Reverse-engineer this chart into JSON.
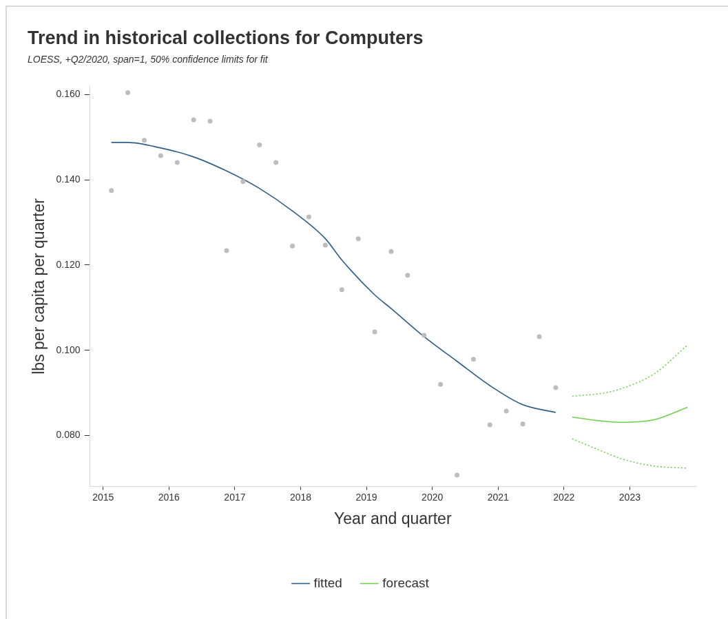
{
  "chart_data": {
    "type": "scatter",
    "title": "Trend in historical collections for Computers",
    "subtitle": "LOESS, +Q2/2020, span=1, 50% confidence limits for fit",
    "xlabel": "Year and quarter",
    "ylabel": "lbs per capita per quarter",
    "xlim": [
      2014.8,
      2024.0
    ],
    "ylim": [
      0.068,
      0.162
    ],
    "xticks": [
      2015,
      2016,
      2017,
      2018,
      2019,
      2020,
      2021,
      2022,
      2023
    ],
    "yticks": [
      {
        "value": 0.08,
        "label": "0.080"
      },
      {
        "value": 0.1,
        "label": "0.100"
      },
      {
        "value": 0.12,
        "label": "0.120"
      },
      {
        "value": 0.14,
        "label": "0.140"
      },
      {
        "value": 0.16,
        "label": "0.160"
      }
    ],
    "grid": false,
    "legend": "bottom",
    "series": [
      {
        "type": "scatter",
        "marker": "circle",
        "color": "#bdbdbd",
        "x": [
          2015.125,
          2015.375,
          2015.625,
          2015.875,
          2016.125,
          2016.375,
          2016.625,
          2016.875,
          2017.125,
          2017.375,
          2017.625,
          2017.875,
          2018.125,
          2018.375,
          2018.625,
          2018.875,
          2019.125,
          2019.375,
          2019.625,
          2019.875,
          2020.125,
          2020.375,
          2020.625,
          2020.875,
          2021.125,
          2021.375,
          2021.625,
          2021.875
        ],
        "values": [
          0.1375,
          0.1605,
          0.1493,
          0.1457,
          0.1441,
          0.1541,
          0.1538,
          0.1234,
          0.1396,
          0.1482,
          0.1441,
          0.1245,
          0.1313,
          0.1247,
          0.1142,
          0.1262,
          0.1043,
          0.1232,
          0.1176,
          0.1035,
          0.092,
          0.0707,
          0.0979,
          0.0825,
          0.0857,
          0.0827,
          0.1032,
          0.0912
        ]
      },
      {
        "type": "line",
        "marker": "none",
        "line_style": "solid",
        "name": "fitted",
        "color": "#2c5d8a",
        "x": [
          2015.125,
          2015.375,
          2015.875,
          2016.375,
          2016.875,
          2017.375,
          2017.875,
          2018.375,
          2018.625,
          2019.125,
          2019.375,
          2019.875,
          2020.375,
          2020.875,
          2021.375,
          2021.875
        ],
        "values": [
          0.1488,
          0.1488,
          0.1475,
          0.1454,
          0.1421,
          0.138,
          0.1327,
          0.1262,
          0.1212,
          0.113,
          0.1098,
          0.1032,
          0.0974,
          0.0917,
          0.0872,
          0.0854
        ]
      },
      {
        "type": "line",
        "marker": "none",
        "line_style": "solid",
        "name": "forecast",
        "color": "#6fcf4f",
        "x": [
          2022.125,
          2022.625,
          2022.875,
          2023.375,
          2023.875
        ],
        "values": [
          0.0843,
          0.0833,
          0.0831,
          0.0837,
          0.0866
        ]
      },
      {
        "type": "line",
        "marker": "none",
        "line_style": "dotted",
        "color": "#6fcf4f",
        "x": [
          2022.125,
          2022.625,
          2022.875,
          2023.375,
          2023.875
        ],
        "values": [
          0.0892,
          0.09,
          0.091,
          0.0945,
          0.1012
        ]
      },
      {
        "type": "line",
        "marker": "none",
        "line_style": "dotted",
        "color": "#6fcf4f",
        "x": [
          2022.125,
          2022.625,
          2022.875,
          2023.375,
          2023.875
        ],
        "values": [
          0.0792,
          0.076,
          0.0745,
          0.0728,
          0.0723
        ]
      }
    ]
  }
}
